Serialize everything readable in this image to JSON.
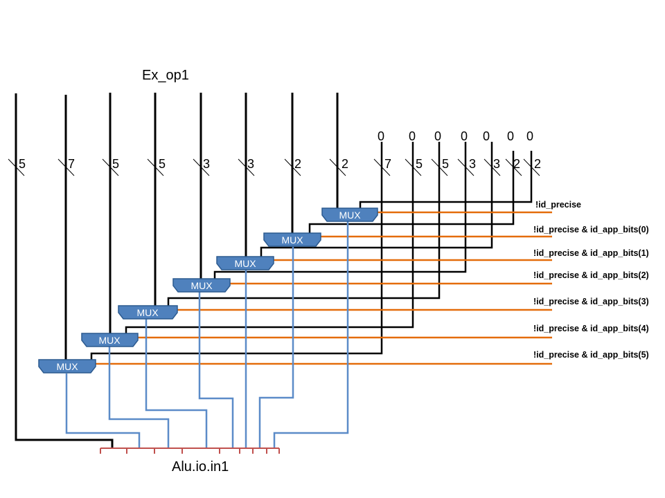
{
  "title": "Ex_op1",
  "output_label": "Alu.io.in1",
  "mux_label": "MUX",
  "zero_labels": [
    "0",
    "0",
    "0",
    "0",
    "0",
    "0",
    "0"
  ],
  "left_bus_widths": [
    "5",
    "7",
    "5",
    "5",
    "3",
    "3",
    "2",
    "2"
  ],
  "right_bus_widths": [
    "7",
    "5",
    "5",
    "3",
    "3",
    "2",
    "2"
  ],
  "select_signals": [
    "!id_precise",
    "!id_precise & id_app_bits(0)",
    "!id_precise & id_app_bits(1)",
    "!id_precise & id_app_bits(2)",
    "!id_precise & id_app_bits(3)",
    "!id_precise & id_app_bits(4)",
    "!id_precise & id_app_bits(5)"
  ],
  "colors": {
    "wire": "#000000",
    "mux_output_wire": "#5b8bc8",
    "select_wire": "#e46c0a",
    "mux_fill": "#4f81bd",
    "mux_stroke": "#2c5a8f",
    "output_bus": "#c0504d"
  }
}
